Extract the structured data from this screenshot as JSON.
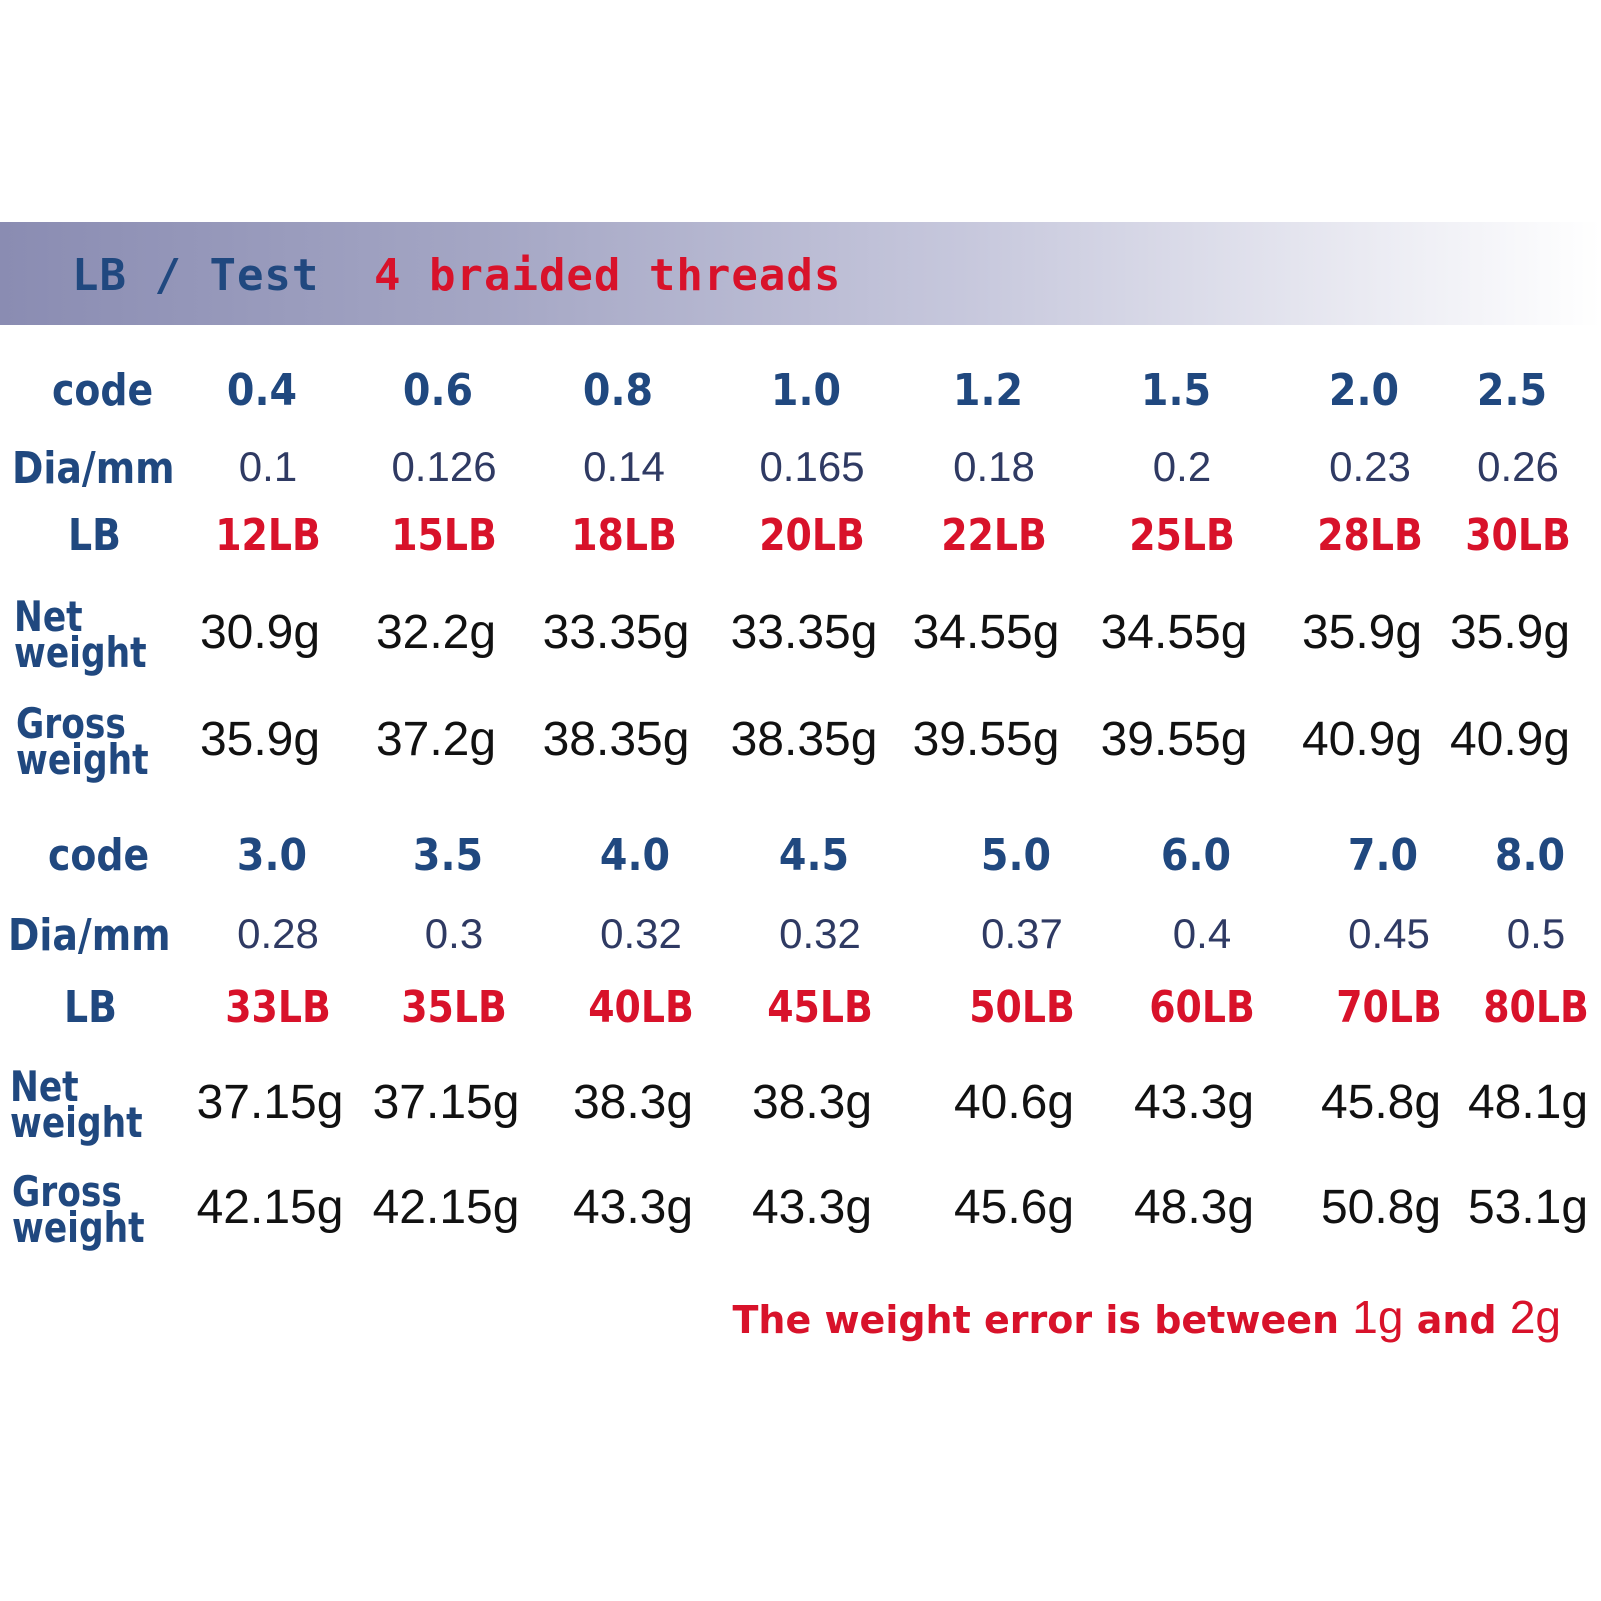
{
  "header": {
    "left_label": "LB / Test",
    "right_label": "4 braided threads"
  },
  "labels": {
    "code": "code",
    "dia": "Dia/mm",
    "lb": "LB",
    "net_line1": "Net",
    "net_line2": "weight",
    "gross_line1": "Gross",
    "gross_line2": "weight"
  },
  "tables": [
    {
      "codes": [
        "0.4",
        "0.6",
        "0.8",
        "1.0",
        "1.2",
        "1.5",
        "2.0",
        "2.5"
      ],
      "dia": [
        "0.1",
        "0.126",
        "0.14",
        "0.165",
        "0.18",
        "0.2",
        "0.23",
        "0.26"
      ],
      "lb": [
        "12LB",
        "15LB",
        "18LB",
        "20LB",
        "22LB",
        "25LB",
        "28LB",
        "30LB"
      ],
      "net": [
        "30.9g",
        "32.2g",
        "33.35g",
        "33.35g",
        "34.55g",
        "34.55g",
        "35.9g",
        "35.9g"
      ],
      "gross": [
        "35.9g",
        "37.2g",
        "38.35g",
        "38.35g",
        "39.55g",
        "39.55g",
        "40.9g",
        "40.9g"
      ]
    },
    {
      "codes": [
        "3.0",
        "3.5",
        "4.0",
        "4.5",
        "5.0",
        "6.0",
        "7.0",
        "8.0"
      ],
      "dia": [
        "0.28",
        "0.3",
        "0.32",
        "0.32",
        "0.37",
        "0.4",
        "0.45",
        "0.5"
      ],
      "lb": [
        "33LB",
        "35LB",
        "40LB",
        "45LB",
        "50LB",
        "60LB",
        "70LB",
        "80LB"
      ],
      "net": [
        "37.15g",
        "37.15g",
        "38.3g",
        "38.3g",
        "40.6g",
        "43.3g",
        "45.8g",
        "48.1g"
      ],
      "gross": [
        "42.15g",
        "42.15g",
        "43.3g",
        "43.3g",
        "45.6g",
        "48.3g",
        "50.8g",
        "53.1g"
      ]
    }
  ],
  "footer": {
    "text": "The weight error is between",
    "value1": "1g",
    "and": "and",
    "value2": "2g"
  },
  "colors": {
    "label_blue": "#20487f",
    "accent_red": "#d8122a"
  }
}
